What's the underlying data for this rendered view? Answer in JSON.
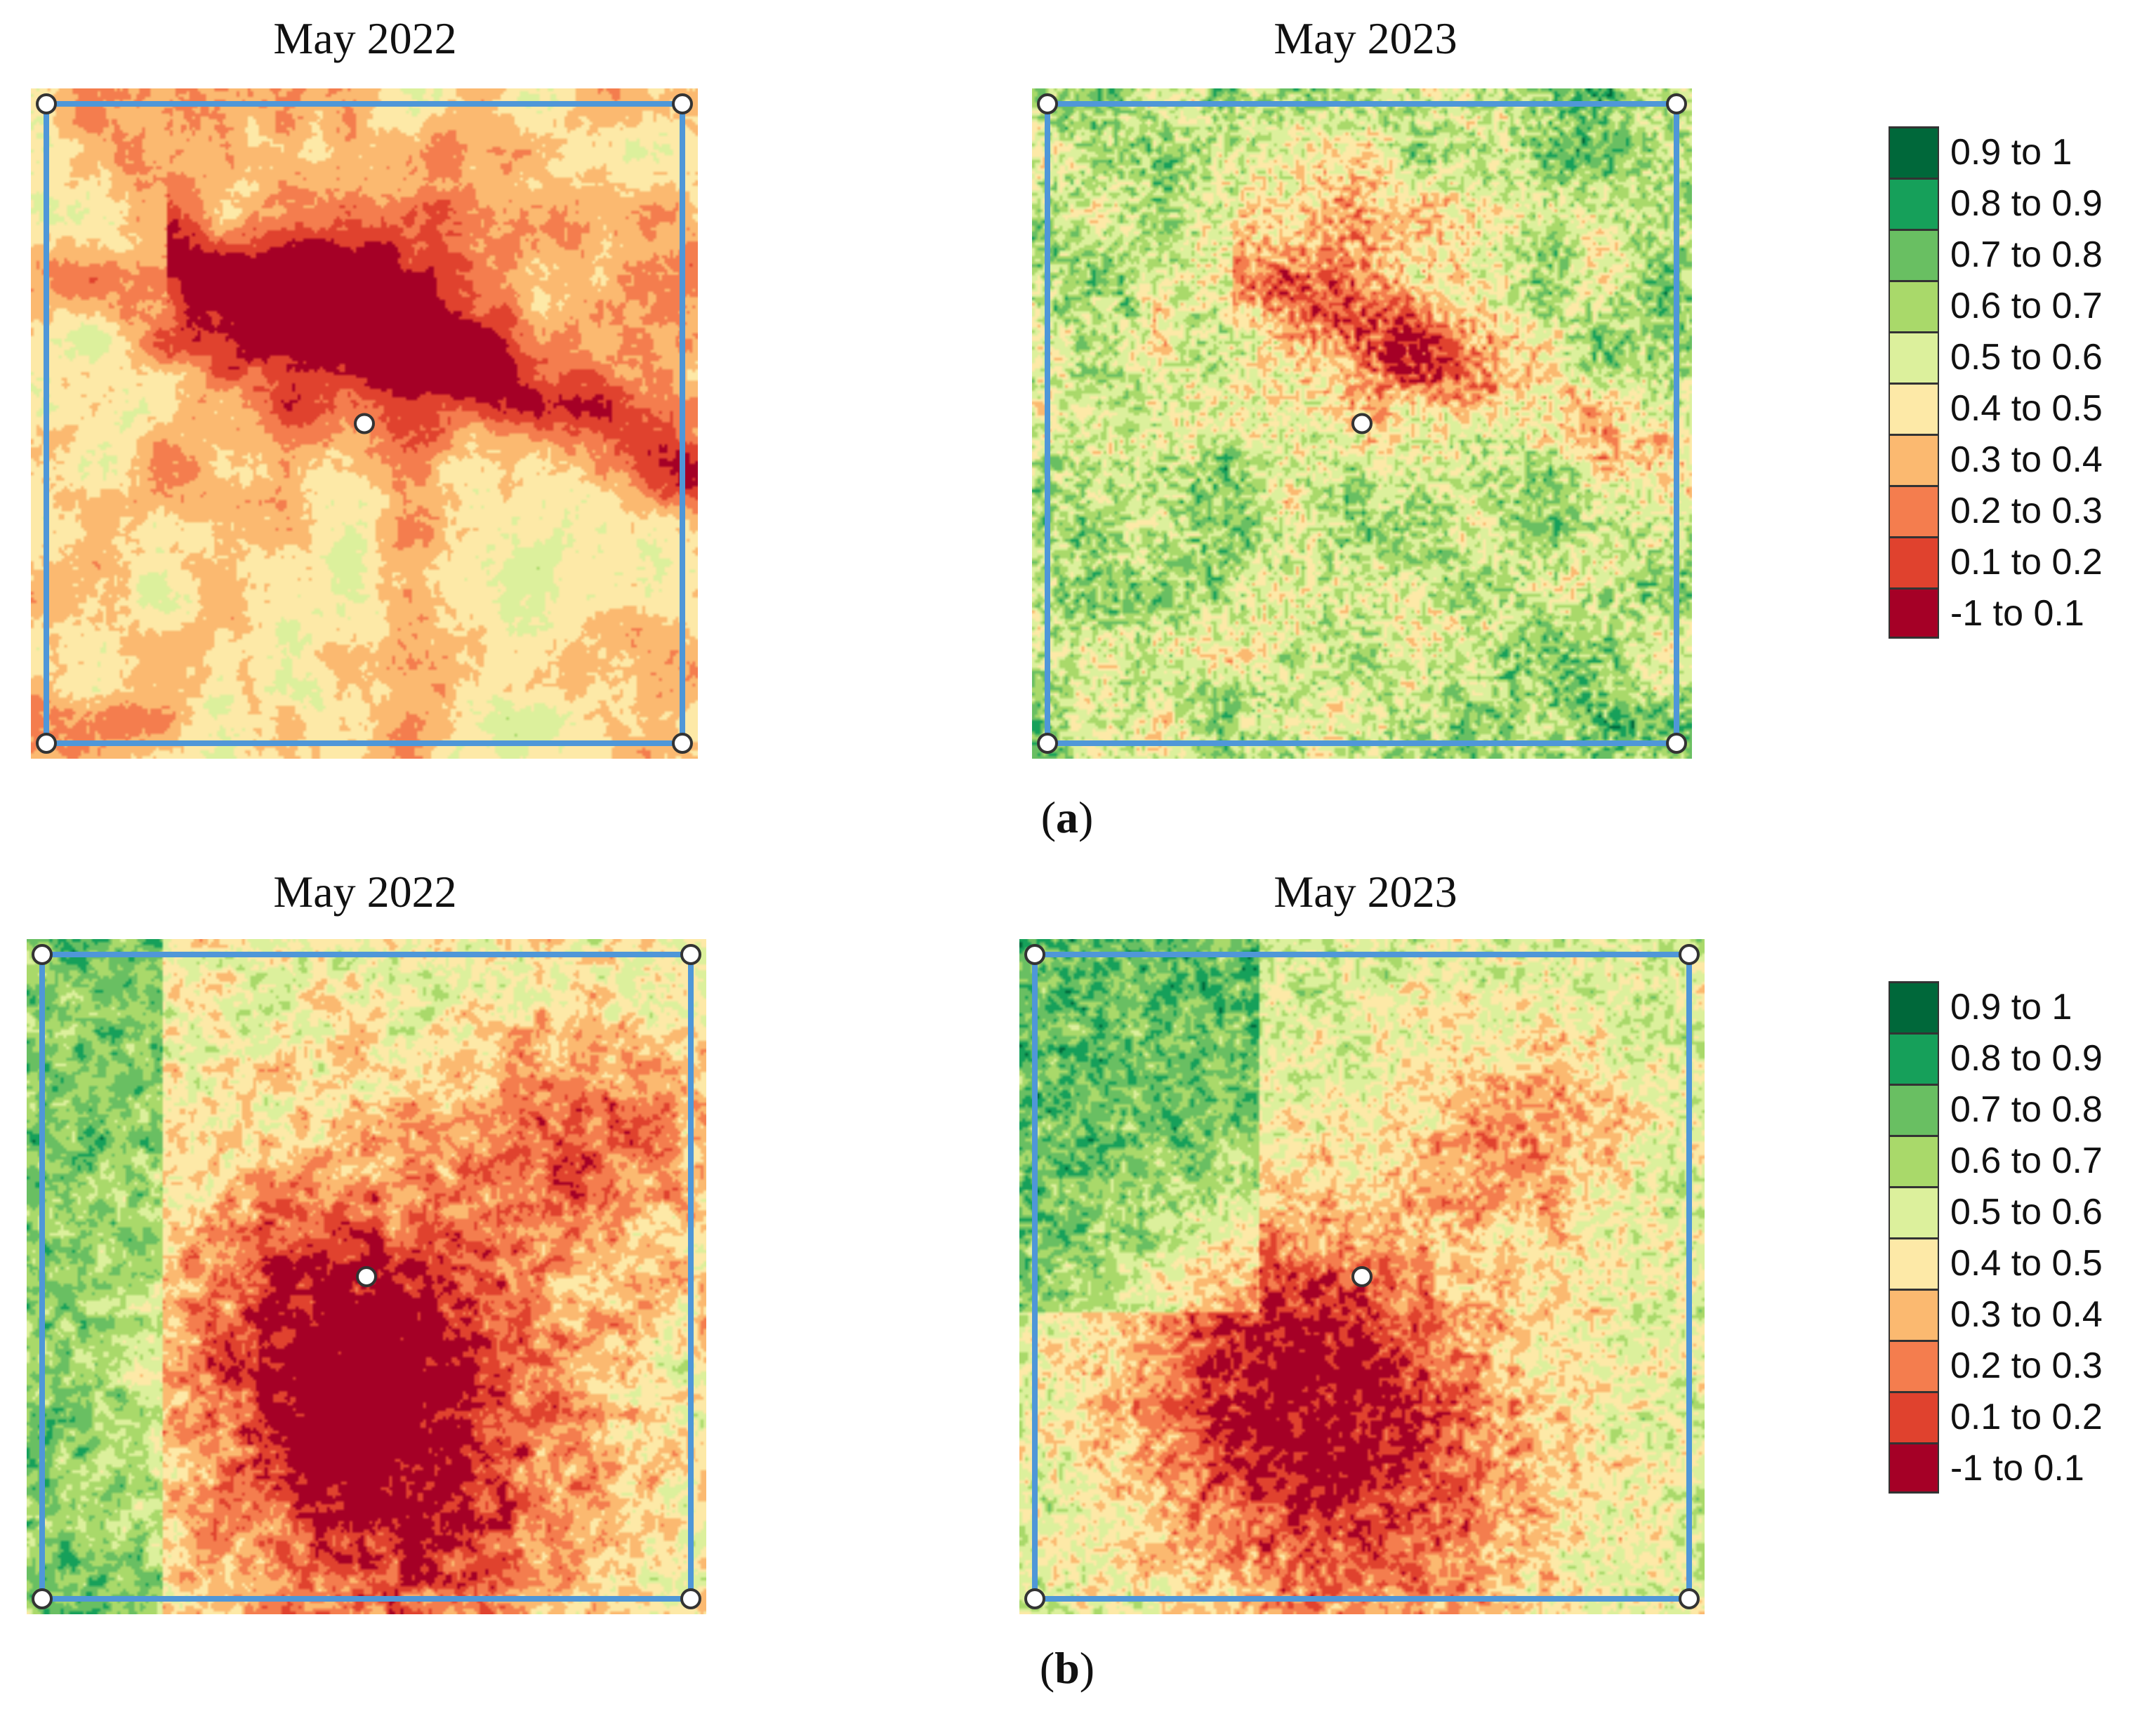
{
  "panels": [
    {
      "id": "a",
      "caption_letter": "a",
      "maps": [
        {
          "title": "May 2022",
          "style": "a2022"
        },
        {
          "title": "May 2023",
          "style": "a2023"
        }
      ]
    },
    {
      "id": "b",
      "caption_letter": "b",
      "maps": [
        {
          "title": "May 2022",
          "style": "b2022"
        },
        {
          "title": "May 2023",
          "style": "b2023"
        }
      ]
    }
  ],
  "legend": {
    "classes": [
      {
        "label": "0.9 to 1",
        "color": "#00683a"
      },
      {
        "label": "0.8 to 0.9",
        "color": "#16a05a"
      },
      {
        "label": "0.7 to 0.8",
        "color": "#69bf62"
      },
      {
        "label": "0.6 to 0.7",
        "color": "#a9d96a"
      },
      {
        "label": "0.5 to 0.6",
        "color": "#dcf09c"
      },
      {
        "label": "0.4 to 0.5",
        "color": "#fde9a7"
      },
      {
        "label": "0.3 to 0.4",
        "color": "#fbb970"
      },
      {
        "label": "0.2 to 0.3",
        "color": "#f47d4e"
      },
      {
        "label": "0.1 to 0.2",
        "color": "#e0422e"
      },
      {
        "label": "-1 to 0.1",
        "color": "#a50026"
      }
    ]
  },
  "overlay": {
    "frame_color": "#4f97d8",
    "marker_fill": "#ffffff",
    "marker_stroke": "#333333"
  }
}
